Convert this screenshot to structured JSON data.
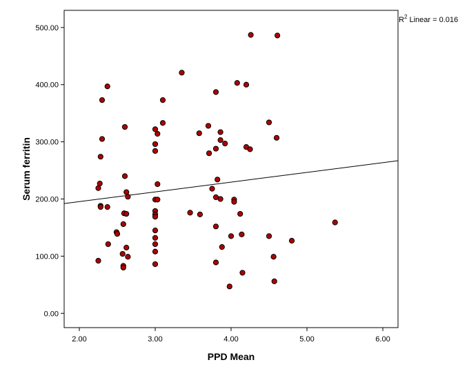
{
  "chart_data": {
    "type": "scatter",
    "xlabel": "PPD Mean",
    "ylabel": "Serum ferritin",
    "xlim": [
      1.8,
      6.2
    ],
    "ylim": [
      -25,
      530
    ],
    "xticks": [
      "2.00",
      "3.00",
      "4.00",
      "5.00",
      "6.00"
    ],
    "yticks": [
      "0.00",
      "100.00",
      "200.00",
      "300.00",
      "400.00",
      "500.00"
    ],
    "xtick_values": [
      2,
      3,
      4,
      5,
      6
    ],
    "ytick_values": [
      0,
      100,
      200,
      300,
      400,
      500
    ],
    "grid": false,
    "legend": "none",
    "marker_color": "#b00000",
    "marker_edge": "#000000",
    "fit_line": {
      "label_prefix": "R",
      "label_sup": "2",
      "label_suffix": " Linear = 0.016",
      "x": [
        1.8,
        6.2
      ],
      "y": [
        192,
        267
      ]
    },
    "points": [
      {
        "x": 2.25,
        "y": 92
      },
      {
        "x": 2.25,
        "y": 219
      },
      {
        "x": 2.27,
        "y": 227
      },
      {
        "x": 2.28,
        "y": 188
      },
      {
        "x": 2.28,
        "y": 186
      },
      {
        "x": 2.28,
        "y": 274
      },
      {
        "x": 2.3,
        "y": 373
      },
      {
        "x": 2.3,
        "y": 305
      },
      {
        "x": 2.37,
        "y": 397
      },
      {
        "x": 2.37,
        "y": 186
      },
      {
        "x": 2.38,
        "y": 121
      },
      {
        "x": 2.49,
        "y": 142
      },
      {
        "x": 2.5,
        "y": 139
      },
      {
        "x": 2.57,
        "y": 104
      },
      {
        "x": 2.58,
        "y": 83
      },
      {
        "x": 2.58,
        "y": 80
      },
      {
        "x": 2.58,
        "y": 156
      },
      {
        "x": 2.59,
        "y": 175
      },
      {
        "x": 2.6,
        "y": 326
      },
      {
        "x": 2.6,
        "y": 240
      },
      {
        "x": 2.62,
        "y": 212
      },
      {
        "x": 2.62,
        "y": 174
      },
      {
        "x": 2.62,
        "y": 115
      },
      {
        "x": 2.64,
        "y": 99
      },
      {
        "x": 2.64,
        "y": 204
      },
      {
        "x": 3.0,
        "y": 322
      },
      {
        "x": 3.0,
        "y": 296
      },
      {
        "x": 3.0,
        "y": 284
      },
      {
        "x": 3.0,
        "y": 199
      },
      {
        "x": 3.0,
        "y": 179
      },
      {
        "x": 3.0,
        "y": 173
      },
      {
        "x": 3.0,
        "y": 169
      },
      {
        "x": 3.0,
        "y": 145
      },
      {
        "x": 3.0,
        "y": 132
      },
      {
        "x": 3.0,
        "y": 121
      },
      {
        "x": 3.0,
        "y": 108
      },
      {
        "x": 3.0,
        "y": 86
      },
      {
        "x": 3.03,
        "y": 314
      },
      {
        "x": 3.03,
        "y": 226
      },
      {
        "x": 3.03,
        "y": 199
      },
      {
        "x": 3.1,
        "y": 373
      },
      {
        "x": 3.1,
        "y": 333
      },
      {
        "x": 3.35,
        "y": 421
      },
      {
        "x": 3.46,
        "y": 176
      },
      {
        "x": 3.58,
        "y": 315
      },
      {
        "x": 3.59,
        "y": 173
      },
      {
        "x": 3.7,
        "y": 328
      },
      {
        "x": 3.71,
        "y": 280
      },
      {
        "x": 3.75,
        "y": 218
      },
      {
        "x": 3.8,
        "y": 387
      },
      {
        "x": 3.8,
        "y": 288
      },
      {
        "x": 3.8,
        "y": 203
      },
      {
        "x": 3.8,
        "y": 152
      },
      {
        "x": 3.8,
        "y": 89
      },
      {
        "x": 3.82,
        "y": 234
      },
      {
        "x": 3.86,
        "y": 317
      },
      {
        "x": 3.86,
        "y": 303
      },
      {
        "x": 3.86,
        "y": 200
      },
      {
        "x": 3.88,
        "y": 116
      },
      {
        "x": 3.92,
        "y": 297
      },
      {
        "x": 3.98,
        "y": 47
      },
      {
        "x": 4.0,
        "y": 135
      },
      {
        "x": 4.04,
        "y": 199
      },
      {
        "x": 4.04,
        "y": 195
      },
      {
        "x": 4.08,
        "y": 403
      },
      {
        "x": 4.12,
        "y": 174
      },
      {
        "x": 4.14,
        "y": 138
      },
      {
        "x": 4.15,
        "y": 71
      },
      {
        "x": 4.2,
        "y": 400
      },
      {
        "x": 4.2,
        "y": 291
      },
      {
        "x": 4.25,
        "y": 287
      },
      {
        "x": 4.26,
        "y": 487
      },
      {
        "x": 4.5,
        "y": 334
      },
      {
        "x": 4.5,
        "y": 135
      },
      {
        "x": 4.56,
        "y": 99
      },
      {
        "x": 4.57,
        "y": 56
      },
      {
        "x": 4.6,
        "y": 307
      },
      {
        "x": 4.61,
        "y": 486
      },
      {
        "x": 4.8,
        "y": 127
      },
      {
        "x": 5.37,
        "y": 159
      }
    ]
  }
}
